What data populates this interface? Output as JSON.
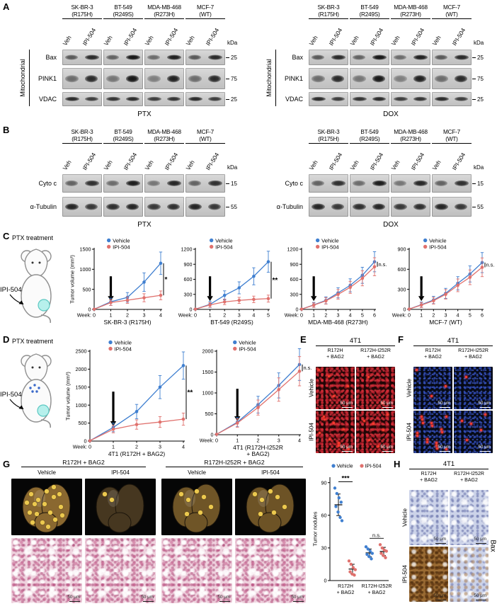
{
  "colors": {
    "vehicle": "#3f7fd0",
    "ipi504": "#e0716d"
  },
  "blot_panels": [
    {
      "letter": "A",
      "side_label": "Mitochondrial",
      "kda_header": "kDa",
      "lane_labels": [
        "Veh",
        "IPI-504"
      ],
      "cell_lines": [
        [
          "SK-BR-3",
          "(R175H)"
        ],
        [
          "BT-549",
          "(R249S)"
        ],
        [
          "MDA-MB-468",
          "(R273H)"
        ],
        [
          "MCF-7",
          "(WT)"
        ]
      ],
      "rows": [
        {
          "label": "Bax",
          "kda": "25",
          "veh": 0.6,
          "ipi": 0.95
        },
        {
          "label": "PINK1",
          "kda": "75",
          "veh": 0.5,
          "ipi": 0.95
        },
        {
          "label": "VDAC",
          "kda": "25",
          "veh": 0.85,
          "ipi": 0.85
        }
      ],
      "groups": [
        "PTX",
        "DOX"
      ]
    },
    {
      "letter": "B",
      "kda_header": "kDa",
      "lane_labels": [
        "Veh",
        "IPI-504"
      ],
      "cell_lines": [
        [
          "SK-BR-3",
          "(R175H)"
        ],
        [
          "BT-549",
          "(R249S)"
        ],
        [
          "MDA-MB-468",
          "(R273H)"
        ],
        [
          "MCF-7",
          "(WT)"
        ]
      ],
      "rows": [
        {
          "label": "Cyto c",
          "kda": "15",
          "veh": 0.55,
          "ipi": 0.92
        },
        {
          "label": "α-Tubulin",
          "kda": "55",
          "veh": 0.88,
          "ipi": 0.88
        }
      ],
      "groups": [
        "PTX",
        "DOX"
      ]
    }
  ],
  "panel_C": {
    "letter": "C",
    "treatment": "PTX treatment",
    "injection": "IPI-504"
  },
  "panel_D": {
    "letter": "D",
    "treatment": "PTX treatment",
    "injection": "IPI-504"
  },
  "panel_E": {
    "letter": "E",
    "header": "4T1",
    "columns": [
      [
        "R172H",
        "+ BAG2"
      ],
      [
        "R172H-I252R",
        "+ BAG2"
      ]
    ],
    "rows": [
      "Vehicle",
      "IPI-504"
    ],
    "scale": "50 μm"
  },
  "panel_F": {
    "letter": "F",
    "header": "4T1",
    "columns": [
      [
        "R172H",
        "+ BAG2"
      ],
      [
        "R172H-I252R",
        "+ BAG2"
      ]
    ],
    "rows": [
      "Vehicle",
      "IPI-504"
    ],
    "scale": "50 μm"
  },
  "panel_G": {
    "letter": "G",
    "group_headers": [
      "R172H + BAG2",
      "R172H-I252R + BAG2"
    ],
    "col_labels": [
      "Vehicle",
      "IPI-504",
      "Vehicle",
      "IPI-504"
    ],
    "scale": "50 μm"
  },
  "panel_H": {
    "letter": "H",
    "header": "4T1",
    "columns": [
      [
        "R172H",
        "+ BAG2"
      ],
      [
        "R172H-I252R",
        "+ BAG2"
      ]
    ],
    "rows": [
      "Vehicle",
      "IPI-504"
    ],
    "side_label": "Bax",
    "scale": "50 μm"
  },
  "chart_data": [
    {
      "id": "C1",
      "type": "line",
      "title": "SK-BR-3 (R175H)",
      "ylabel": "Tumor volume (mm³)",
      "xlabel": "Week:",
      "x": [
        0,
        1,
        2,
        3,
        4
      ],
      "ylim": [
        0,
        1500
      ],
      "yticks": [
        0,
        500,
        1000,
        1500
      ],
      "series": [
        {
          "name": "Vehicle",
          "values": [
            5,
            190,
            300,
            680,
            1150
          ],
          "err": [
            0,
            90,
            120,
            230,
            280
          ]
        },
        {
          "name": "IPI-504",
          "values": [
            5,
            170,
            230,
            290,
            350
          ],
          "err": [
            0,
            70,
            80,
            100,
            110
          ]
        }
      ],
      "arrow_week": 1,
      "sig": "*"
    },
    {
      "id": "C2",
      "type": "line",
      "title": "BT-549 (R249S)",
      "xlabel": "Week:",
      "x": [
        0,
        1,
        2,
        3,
        4,
        5
      ],
      "ylim": [
        0,
        1200
      ],
      "yticks": [
        0,
        300,
        600,
        900,
        1200
      ],
      "series": [
        {
          "name": "Vehicle",
          "values": [
            5,
            100,
            280,
            430,
            660,
            950
          ],
          "err": [
            0,
            60,
            90,
            120,
            170,
            210
          ]
        },
        {
          "name": "IPI-504",
          "values": [
            5,
            90,
            150,
            180,
            200,
            215
          ],
          "err": [
            0,
            45,
            55,
            60,
            65,
            70
          ]
        }
      ],
      "arrow_week": 1,
      "sig": "**"
    },
    {
      "id": "C3",
      "type": "line",
      "title": "MDA-MB-468 (R273H)",
      "xlabel": "Week:",
      "x": [
        0,
        1,
        2,
        3,
        4,
        5,
        6
      ],
      "ylim": [
        0,
        1200
      ],
      "yticks": [
        0,
        300,
        600,
        900,
        1200
      ],
      "series": [
        {
          "name": "Vehicle",
          "values": [
            5,
            90,
            180,
            330,
            480,
            680,
            950
          ],
          "err": [
            0,
            50,
            70,
            100,
            130,
            160,
            200
          ]
        },
        {
          "name": "IPI-504",
          "values": [
            5,
            85,
            170,
            300,
            440,
            620,
            850
          ],
          "err": [
            0,
            45,
            65,
            95,
            120,
            150,
            180
          ]
        }
      ],
      "arrow_week": 1,
      "sig": "n.s."
    },
    {
      "id": "C4",
      "type": "line",
      "title": "MCF-7 (WT)",
      "xlabel": "Week:",
      "x": [
        0,
        1,
        2,
        3,
        4,
        5,
        6
      ],
      "ylim": [
        0,
        900
      ],
      "yticks": [
        0,
        300,
        600,
        900
      ],
      "series": [
        {
          "name": "Vehicle",
          "values": [
            5,
            70,
            140,
            240,
            390,
            530,
            700
          ],
          "err": [
            0,
            40,
            55,
            75,
            100,
            120,
            150
          ]
        },
        {
          "name": "IPI-504",
          "values": [
            5,
            65,
            130,
            225,
            360,
            480,
            630
          ],
          "err": [
            0,
            38,
            50,
            70,
            95,
            110,
            140
          ]
        }
      ],
      "arrow_week": 1,
      "sig": "n.s."
    },
    {
      "id": "D1",
      "type": "line",
      "title": "4T1 (R172H + BAG2)",
      "ylabel": "Tumor volume (mm³)",
      "xlabel": "Week:",
      "x": [
        0,
        1,
        2,
        3,
        4
      ],
      "ylim": [
        0,
        2500
      ],
      "yticks": [
        0,
        500,
        1000,
        1500,
        2000,
        2500
      ],
      "series": [
        {
          "name": "Vehicle",
          "values": [
            10,
            380,
            820,
            1500,
            2100
          ],
          "err": [
            0,
            120,
            200,
            320,
            380
          ]
        },
        {
          "name": "IPI-504",
          "values": [
            10,
            330,
            460,
            530,
            610
          ],
          "err": [
            0,
            100,
            130,
            150,
            170
          ]
        }
      ],
      "arrow_week": 1,
      "sig": "**"
    },
    {
      "id": "D2",
      "type": "line",
      "title": "4T1 (R172H-I252R",
      "title2": "+ BAG2)",
      "xlabel": "Week:",
      "x": [
        0,
        1,
        2,
        3,
        4
      ],
      "ylim": [
        0,
        2000
      ],
      "yticks": [
        0,
        500,
        1000,
        1500,
        2000
      ],
      "series": [
        {
          "name": "Vehicle",
          "values": [
            10,
            300,
            720,
            1180,
            1680
          ],
          "err": [
            0,
            110,
            200,
            300,
            380
          ]
        },
        {
          "name": "IPI-504",
          "values": [
            10,
            280,
            650,
            1080,
            1520
          ],
          "err": [
            0,
            100,
            180,
            280,
            350
          ]
        }
      ],
      "arrow_week": 1,
      "sig": "n.s."
    },
    {
      "id": "G",
      "type": "scatter",
      "ylabel": "Tumor nodules",
      "ylim": [
        0,
        95
      ],
      "yticks": [
        0,
        30,
        60,
        90
      ],
      "legend": [
        "Vehicle",
        "IPI-504"
      ],
      "groups": [
        {
          "label": [
            "R172H",
            "+ BAG2"
          ],
          "sig": "***",
          "vehicle": [
            85,
            80,
            76,
            72,
            68,
            63,
            58,
            55
          ],
          "ipi504": [
            18,
            15,
            12,
            10,
            8,
            6,
            5
          ]
        },
        {
          "label": [
            "R172H-I252R",
            "+ BAG2"
          ],
          "sig": "n.s.",
          "vehicle": [
            31,
            29,
            27,
            25,
            24,
            22,
            20
          ],
          "ipi504": [
            33,
            30,
            28,
            27,
            25,
            23,
            21
          ]
        }
      ]
    }
  ]
}
